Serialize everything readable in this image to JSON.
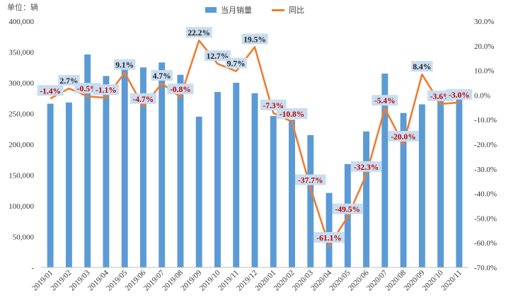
{
  "unit_label": "单位：辆",
  "chart_data": {
    "type": "bar+line",
    "categories": [
      "2019/01",
      "2019/02",
      "2019/03",
      "2019/04",
      "2019/05",
      "2019/06",
      "2019/07",
      "2019/08",
      "2019/09",
      "2019/10",
      "2019/11",
      "2019/12",
      "2020/01",
      "2020/02",
      "2020/03",
      "2020/04",
      "2020/05",
      "2020/06",
      "2020/07",
      "2020/08",
      "2020/09",
      "2020/10",
      "2020/11"
    ],
    "series": [
      {
        "name": "当月销量",
        "type": "bar",
        "axis": "left",
        "values": [
          266000,
          268000,
          346000,
          311000,
          329000,
          325000,
          333000,
          313000,
          245000,
          285000,
          300000,
          283000,
          246000,
          240000,
          215000,
          121000,
          168000,
          221000,
          315000,
          251000,
          265000,
          275000,
          275000
        ]
      },
      {
        "name": "同比",
        "type": "line",
        "axis": "right",
        "values": [
          -1.4,
          2.7,
          -0.5,
          -1.1,
          9.1,
          -4.7,
          4.7,
          -0.8,
          22.2,
          12.7,
          9.7,
          19.5,
          -7.3,
          -10.8,
          -37.7,
          -61.1,
          -49.5,
          -32.3,
          -5.4,
          -20.0,
          8.4,
          -3.6,
          -3.0
        ]
      }
    ],
    "data_labels": [
      "-1.4%",
      "2.7%",
      "-0.5%",
      "-1.1%",
      "9.1%",
      "-4.7%",
      "4.7%",
      "-0.8%",
      "22.2%",
      "12.7%",
      "9.7%",
      "19.5%",
      "-7.3%",
      "-10.8%",
      "-37.7%",
      "-61.1%",
      "-49.5%",
      "-32.3%",
      "-5.4%",
      "-20.0%",
      "8.4%",
      "-3.6%",
      "-3.0%"
    ],
    "y_left": {
      "min": 0,
      "max": 400000,
      "step": 50000,
      "ticks": [
        "-",
        "50,000",
        "100,000",
        "150,000",
        "200,000",
        "250,000",
        "300,000",
        "350,000",
        "400,000"
      ]
    },
    "y_right": {
      "min": -70,
      "max": 30,
      "step": 10,
      "ticks": [
        "-70.0%",
        "-60.0%",
        "-50.0%",
        "-40.0%",
        "-30.0%",
        "-20.0%",
        "-10.0%",
        "0.0%",
        "10.0%",
        "20.0%",
        "30.0%"
      ]
    },
    "colors": {
      "bar": "#5b9bd5",
      "line": "#ed7d31",
      "label_positive": "#1f1f1f",
      "label_negative": "#c00000"
    },
    "legend": {
      "position": "top-center",
      "bar_label": "当月销量",
      "line_label": "同比"
    }
  }
}
